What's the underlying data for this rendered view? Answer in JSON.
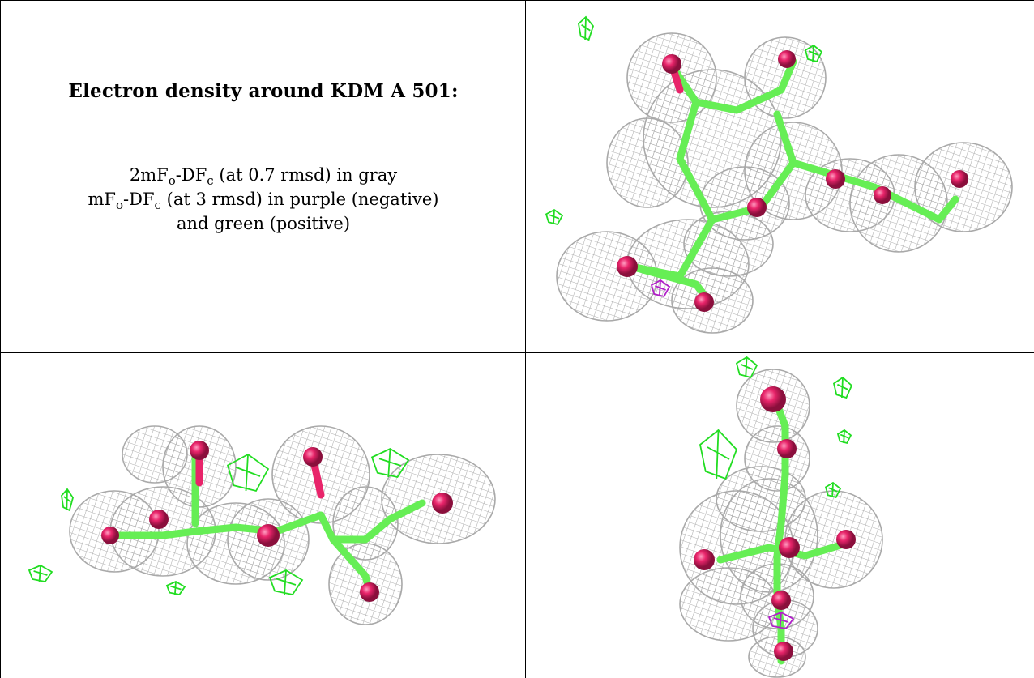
{
  "title": "Electron density around KDM A 501:",
  "legend": {
    "line1": {
      "a": "2mF",
      "a_sub": "o",
      "b": "-DF",
      "b_sub": "c",
      "rest": " (at 0.7 rmsd) in gray"
    },
    "line2": {
      "a": "mF",
      "a_sub": "o",
      "b": "-DF",
      "b_sub": "c",
      "rest": " (at 3 rmsd) in purple (negative)"
    },
    "line3": "and green (positive)"
  },
  "colors": {
    "density_2fofc": "#a9a9a9",
    "difference_positive": "#22dd22",
    "difference_negative": "#b020c8",
    "bond": "#66ee55",
    "oxygen_atom": "#e8246a"
  },
  "panels": [
    "view-1",
    "view-2",
    "view-3"
  ]
}
